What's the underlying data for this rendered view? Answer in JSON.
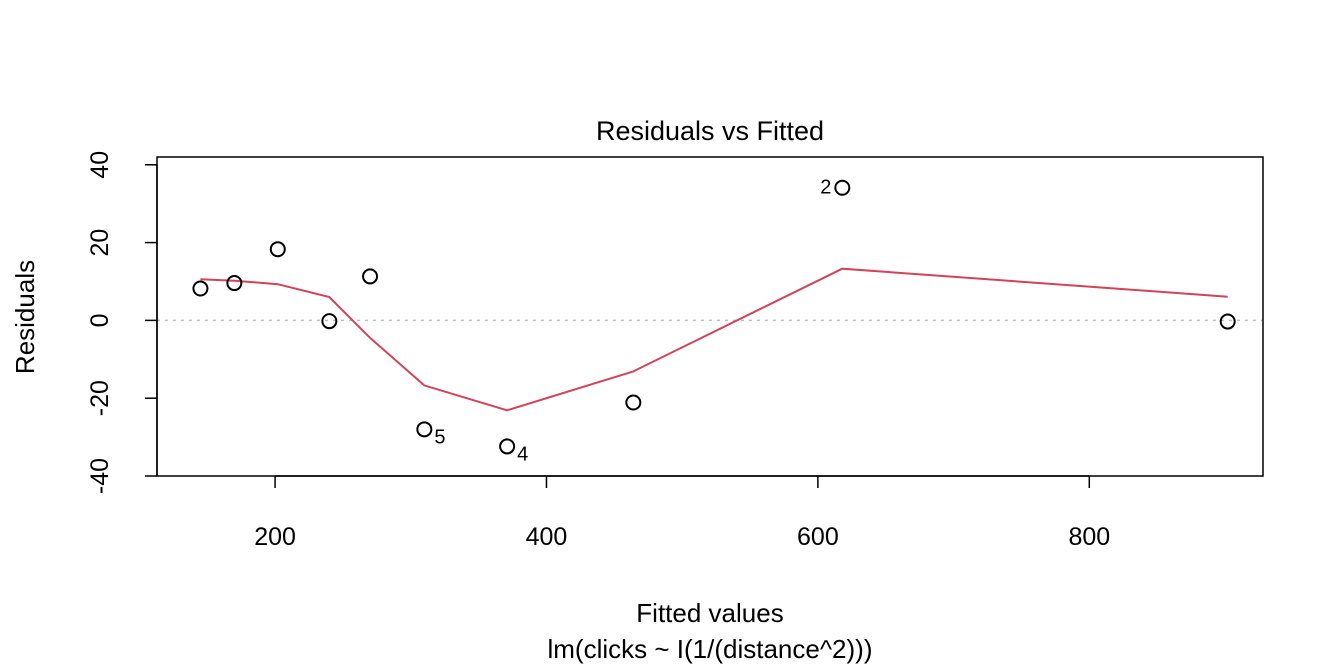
{
  "chart_data": {
    "type": "scatter",
    "title": "Residuals vs Fitted",
    "xlabel": "Fitted values",
    "subtitle": "lm(clicks ~ I(1/(distance^2)))",
    "ylabel": "Residuals",
    "xlim": [
      113,
      928
    ],
    "ylim": [
      -40,
      42
    ],
    "x_ticks": [
      200,
      400,
      600,
      800
    ],
    "y_ticks": [
      -40,
      -20,
      0,
      20,
      40
    ],
    "reference_line": {
      "y": 0,
      "style": "dotted",
      "color": "#bebebe"
    },
    "points": [
      {
        "x": 145,
        "y": 8.2
      },
      {
        "x": 170,
        "y": 9.6
      },
      {
        "x": 202,
        "y": 18.3
      },
      {
        "x": 240,
        "y": -0.2
      },
      {
        "x": 270,
        "y": 11.3
      },
      {
        "x": 310,
        "y": -28,
        "label": "5"
      },
      {
        "x": 371,
        "y": -32.4,
        "label": "4"
      },
      {
        "x": 464,
        "y": -21.1
      },
      {
        "x": 618,
        "y": 34.1,
        "label": "2"
      },
      {
        "x": 902,
        "y": -0.3
      }
    ],
    "smooth": {
      "color": "#d1435b",
      "x": [
        145,
        170,
        202,
        240,
        270,
        310,
        371,
        464,
        618,
        902
      ],
      "y": [
        10.6,
        10.2,
        9.3,
        6.0,
        -4.5,
        -16.7,
        -23.1,
        -13.1,
        13.3,
        6.1
      ]
    }
  }
}
